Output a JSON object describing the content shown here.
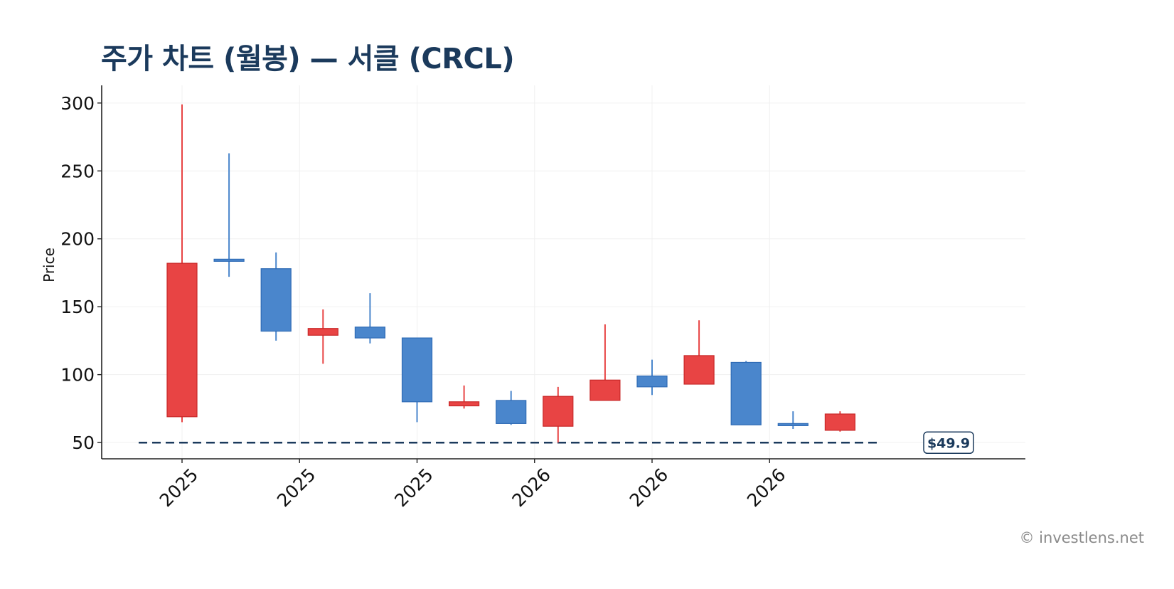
{
  "title": "주가 차트 (월봉) — 서클 (CRCL)",
  "watermark": "© investlens.net",
  "colors": {
    "up": "#e84444",
    "down": "#4a86cc",
    "reference": "#1b3a5c",
    "title": "#1b3a5c"
  },
  "chart_data": {
    "type": "candlestick",
    "ylabel": "Price",
    "ylim": [
      38,
      313
    ],
    "y_ticks": [
      50,
      100,
      150,
      200,
      250,
      300
    ],
    "x_tick_labels": [
      "2025",
      "2025",
      "2025",
      "2026",
      "2026",
      "2026"
    ],
    "x_tick_at_candle": [
      0,
      2.5,
      5,
      7.5,
      10,
      12.5
    ],
    "grid": true,
    "candles": [
      {
        "open": 69,
        "high": 299,
        "low": 65,
        "close": 182
      },
      {
        "open": 185,
        "high": 263,
        "low": 172,
        "close": 184
      },
      {
        "open": 178,
        "high": 190,
        "low": 125,
        "close": 132
      },
      {
        "open": 129,
        "high": 148,
        "low": 108,
        "close": 134
      },
      {
        "open": 135,
        "high": 160,
        "low": 123,
        "close": 127
      },
      {
        "open": 127,
        "high": 127,
        "low": 65,
        "close": 80
      },
      {
        "open": 77,
        "high": 92,
        "low": 75,
        "close": 80
      },
      {
        "open": 81,
        "high": 88,
        "low": 63,
        "close": 64
      },
      {
        "open": 62,
        "high": 91,
        "low": 50,
        "close": 84
      },
      {
        "open": 81,
        "high": 137,
        "low": 81,
        "close": 96
      },
      {
        "open": 99,
        "high": 111,
        "low": 85,
        "close": 91
      },
      {
        "open": 93,
        "high": 140,
        "low": 93,
        "close": 114
      },
      {
        "open": 109,
        "high": 110,
        "low": 63,
        "close": 63
      },
      {
        "open": 64,
        "high": 73,
        "low": 60,
        "close": 63
      },
      {
        "open": 59,
        "high": 73,
        "low": 58,
        "close": 71
      }
    ],
    "reference_line": {
      "value": 49.9,
      "label": "$49.9",
      "style": "dashed"
    }
  }
}
